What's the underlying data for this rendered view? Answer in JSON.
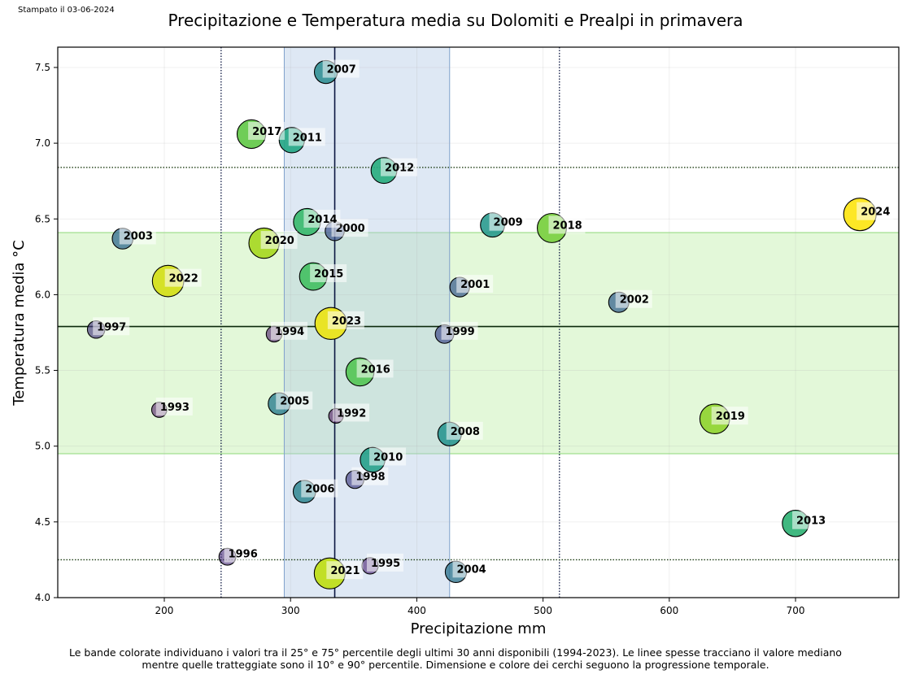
{
  "printed_date": "Stampato il 03-06-2024",
  "caption_line1": "Le bande colorate individuano i valori tra il 25° e 75° percentile degli ultimi 30 anni disponibili (1994-2023). Le linee spesse tracciano il valore mediano",
  "caption_line2": "mentre quelle tratteggiate sono il 10° e 90° percentile. Dimensione e colore dei cerchi seguono la progressione temporale.",
  "chart_data": {
    "type": "scatter",
    "title": "Precipitazione e Temperatura media su Dolomiti e Prealpi in primavera",
    "xlabel": "Precipitazione mm",
    "ylabel": "Temperatura media °C",
    "xlim": [
      115.6,
      781.8
    ],
    "ylim": [
      4.0,
      7.634
    ],
    "xticks": [
      200,
      300,
      400,
      500,
      600,
      700
    ],
    "yticks": [
      4.0,
      4.5,
      5.0,
      5.5,
      6.0,
      6.5,
      7.0,
      7.5
    ],
    "grid": true,
    "colormap": "viridis",
    "reference": {
      "precip_p25": 295,
      "precip_p75": 426,
      "precip_median": 335,
      "precip_p10": 245,
      "precip_p90": 513,
      "temp_p25": 4.95,
      "temp_p75": 6.41,
      "temp_median": 5.79,
      "temp_p10": 4.25,
      "temp_p90": 6.84,
      "precip_band_color": "#b0c8e4",
      "temp_band_color": "#c8f2b4"
    },
    "points": [
      {
        "year": "1992",
        "x": 336,
        "y": 5.2
      },
      {
        "year": "1993",
        "x": 196,
        "y": 5.24
      },
      {
        "year": "1994",
        "x": 287,
        "y": 5.74
      },
      {
        "year": "1995",
        "x": 363,
        "y": 4.21
      },
      {
        "year": "1996",
        "x": 250,
        "y": 4.27
      },
      {
        "year": "1997",
        "x": 146,
        "y": 5.77
      },
      {
        "year": "1998",
        "x": 351,
        "y": 4.78
      },
      {
        "year": "1999",
        "x": 422,
        "y": 5.74
      },
      {
        "year": "2000",
        "x": 335,
        "y": 6.42
      },
      {
        "year": "2001",
        "x": 434,
        "y": 6.05
      },
      {
        "year": "2002",
        "x": 560,
        "y": 5.95
      },
      {
        "year": "2003",
        "x": 167,
        "y": 6.37
      },
      {
        "year": "2004",
        "x": 431,
        "y": 4.17
      },
      {
        "year": "2005",
        "x": 291,
        "y": 5.28
      },
      {
        "year": "2006",
        "x": 311,
        "y": 4.7
      },
      {
        "year": "2007",
        "x": 328,
        "y": 7.47
      },
      {
        "year": "2008",
        "x": 426,
        "y": 5.08
      },
      {
        "year": "2009",
        "x": 460,
        "y": 6.46
      },
      {
        "year": "2010",
        "x": 365,
        "y": 4.91
      },
      {
        "year": "2011",
        "x": 301,
        "y": 7.02
      },
      {
        "year": "2012",
        "x": 374,
        "y": 6.82
      },
      {
        "year": "2013",
        "x": 700,
        "y": 4.49
      },
      {
        "year": "2014",
        "x": 313,
        "y": 6.48
      },
      {
        "year": "2015",
        "x": 318,
        "y": 6.12
      },
      {
        "year": "2016",
        "x": 355,
        "y": 5.49
      },
      {
        "year": "2017",
        "x": 269,
        "y": 7.06
      },
      {
        "year": "2018",
        "x": 507,
        "y": 6.44
      },
      {
        "year": "2019",
        "x": 636,
        "y": 5.18
      },
      {
        "year": "2020",
        "x": 279,
        "y": 6.34
      },
      {
        "year": "2021",
        "x": 331,
        "y": 4.16
      },
      {
        "year": "2022",
        "x": 203,
        "y": 6.09
      },
      {
        "year": "2023",
        "x": 332,
        "y": 5.81
      },
      {
        "year": "2024",
        "x": 751,
        "y": 6.53
      }
    ]
  }
}
